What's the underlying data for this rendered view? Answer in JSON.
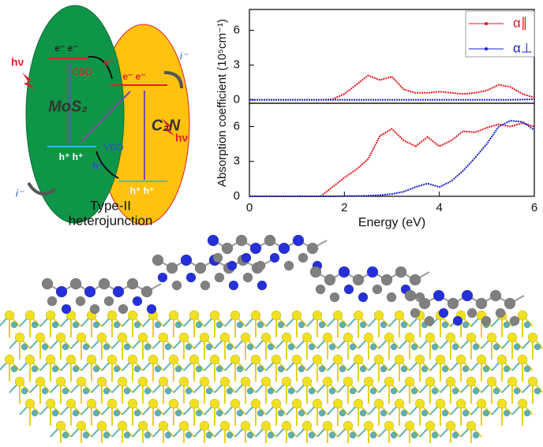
{
  "diagram": {
    "labels": {
      "e_left": "e⁻ e⁻",
      "cbo": "CBO",
      "e_right": "e⁻ e⁻",
      "e_transfer": "e⁻",
      "mos2": "MoS₂",
      "c2n": "C₂N",
      "vbo": "VBO",
      "h_left": "h⁺ h⁺",
      "h_transfer": "h⁺",
      "h_right": "h⁺ h⁺",
      "hv_left": "hν",
      "hv_right": "hν",
      "i_left": "i⁻",
      "i_right": "i⁻",
      "caption_1": "Type-II",
      "caption_2": "heterojunction"
    }
  },
  "chart_data": [
    {
      "type": "line",
      "ylabel": "Absorption coefficient (10⁵cm⁻¹)",
      "legend": "top-right",
      "x": [
        0,
        0.25,
        0.5,
        0.75,
        1,
        1.25,
        1.5,
        1.75,
        2,
        2.25,
        2.5,
        2.75,
        3,
        3.25,
        3.5,
        3.75,
        4,
        4.25,
        4.5,
        4.75,
        5,
        5.25,
        5.5,
        5.75,
        6
      ],
      "xlim": [
        0,
        6
      ],
      "ylim": [
        -0.3,
        7.8
      ],
      "yticks": [
        0,
        3,
        6
      ],
      "series": [
        {
          "name": "α∥",
          "color": "#e8141c",
          "values": [
            0,
            0,
            0,
            0,
            0,
            0,
            0,
            0.05,
            0.5,
            1.3,
            2.1,
            1.7,
            2.0,
            0.9,
            0.6,
            0.6,
            0.7,
            0.6,
            0.5,
            0.6,
            0.8,
            1.3,
            1.1,
            0.5,
            0.2
          ]
        },
        {
          "name": "α⊥",
          "color": "#1420d8",
          "values": [
            0,
            0,
            0,
            0,
            0,
            0,
            0,
            0,
            0,
            0,
            0,
            0,
            0,
            0,
            0,
            0,
            0,
            0,
            0,
            0,
            0,
            0,
            0,
            0.02,
            0.05
          ]
        }
      ]
    },
    {
      "type": "line",
      "xlabel": "Energy (eV)",
      "x": [
        0,
        0.25,
        0.5,
        0.75,
        1,
        1.25,
        1.5,
        1.75,
        2,
        2.25,
        2.5,
        2.75,
        3,
        3.25,
        3.5,
        3.75,
        4,
        4.25,
        4.5,
        4.75,
        5,
        5.25,
        5.5,
        5.75,
        6
      ],
      "xlim": [
        0,
        6
      ],
      "xticks": [
        0,
        2,
        4,
        6
      ],
      "ylim": [
        0,
        8
      ],
      "yticks": [
        0,
        3,
        6
      ],
      "series": [
        {
          "color": "#e8141c",
          "values": [
            0,
            0,
            0,
            0,
            0,
            0,
            0,
            0.8,
            1.6,
            2.3,
            3.2,
            5.2,
            5.8,
            4.8,
            4.3,
            5.1,
            4.3,
            4.8,
            5.6,
            5.5,
            5.9,
            6.2,
            6.0,
            6.3,
            6.0
          ]
        },
        {
          "color": "#1420d8",
          "values": [
            0,
            0,
            0,
            0,
            0,
            0,
            0,
            0,
            0.02,
            0.03,
            0.05,
            0.1,
            0.2,
            0.4,
            0.8,
            1.1,
            0.8,
            1.3,
            2.2,
            3.3,
            4.5,
            6.0,
            6.5,
            6.4,
            5.7
          ]
        }
      ]
    }
  ]
}
